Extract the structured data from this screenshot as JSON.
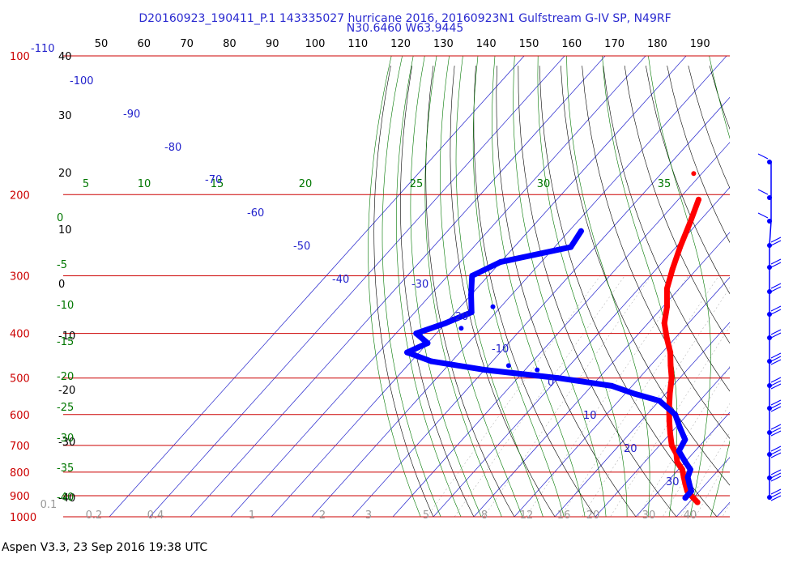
{
  "header": {
    "title": "D20160923_190411_P.1 143335027 hurricane 2016, 20160923N1 Gulfstream G-IV SP, N49RF",
    "subtitle": "N30.6460 W63.9445"
  },
  "footer": {
    "text": "Aspen V3.3, 23 Sep 2016  19:38 UTC"
  },
  "colors": {
    "temperature": "#ff0000",
    "dewpoint": "#0000ff",
    "isobar": "#cc0000",
    "isotherm": "#2222cc",
    "dry_adiabat": "#000000",
    "moist_adiabat": "#007700",
    "mixing_ratio": "#999999",
    "axis_text": "#000000",
    "right_axis_text": "#2222cc"
  },
  "chart_data": {
    "type": "scatter",
    "title": "",
    "xlabel": "",
    "ylabel": "",
    "pressure_levels": [
      "100",
      "200",
      "300",
      "400",
      "500",
      "600",
      "700",
      "800",
      "900",
      "1000"
    ],
    "top_tick_labels": [
      "50",
      "60",
      "70",
      "80",
      "90",
      "100",
      "110",
      "120",
      "130",
      "140",
      "150",
      "160",
      "170",
      "180",
      "190"
    ],
    "left_black_labels": [
      "40",
      "30",
      "20",
      "10",
      "0",
      "-10",
      "-20",
      "-30",
      "-40"
    ],
    "left_green_labels": [
      "0",
      "-5",
      "-10",
      "-15",
      "-20",
      "-25",
      "-30",
      "-35",
      "-40"
    ],
    "top_green_labels": [
      "5",
      "10",
      "15",
      "20",
      "25",
      "30",
      "35"
    ],
    "isotherm_labels": [
      "-110",
      "-100",
      "-90",
      "-80",
      "-70",
      "-60",
      "-50",
      "-40",
      "-30",
      "-20",
      "-10",
      "0",
      "10",
      "20",
      "30"
    ],
    "mixing_ratio_labels": [
      "0.1",
      "0.2",
      "0.4",
      "1",
      "2",
      "3",
      "5",
      "8",
      "12",
      "16",
      "20",
      "30",
      "40"
    ],
    "series": [
      {
        "key": "temperature",
        "points": [
          [
            205,
            -45
          ],
          [
            230,
            -42
          ],
          [
            260,
            -39
          ],
          [
            290,
            -36
          ],
          [
            320,
            -33
          ],
          [
            350,
            -29
          ],
          [
            380,
            -26
          ],
          [
            410,
            -22
          ],
          [
            440,
            -18
          ],
          [
            470,
            -15
          ],
          [
            500,
            -12
          ],
          [
            540,
            -9
          ],
          [
            580,
            -6
          ],
          [
            620,
            -3
          ],
          [
            660,
            0
          ],
          [
            700,
            3
          ],
          [
            730,
            6
          ],
          [
            760,
            8
          ],
          [
            790,
            11
          ],
          [
            820,
            13
          ],
          [
            850,
            15
          ],
          [
            880,
            17
          ],
          [
            910,
            20
          ],
          [
            930,
            22
          ]
        ]
      },
      {
        "key": "dewpoint",
        "points": [
          [
            240,
            -67
          ],
          [
            260,
            -66
          ],
          [
            280,
            -80
          ],
          [
            300,
            -84
          ],
          [
            330,
            -80
          ],
          [
            360,
            -76
          ],
          [
            380,
            -80
          ],
          [
            400,
            -85
          ],
          [
            420,
            -80
          ],
          [
            440,
            -83
          ],
          [
            460,
            -75
          ],
          [
            480,
            -60
          ],
          [
            500,
            -40
          ],
          [
            520,
            -25
          ],
          [
            540,
            -18
          ],
          [
            560,
            -10
          ],
          [
            600,
            -3
          ],
          [
            640,
            1
          ],
          [
            680,
            5
          ],
          [
            720,
            6
          ],
          [
            760,
            10
          ],
          [
            790,
            13
          ],
          [
            820,
            14
          ],
          [
            850,
            16
          ],
          [
            880,
            18
          ],
          [
            910,
            18
          ]
        ]
      },
      {
        "key": "dewpoint_scatter",
        "points": [
          [
            350,
            -72
          ],
          [
            390,
            -75
          ],
          [
            470,
            -55
          ],
          [
            480,
            -47
          ]
        ]
      },
      {
        "key": "isolated_point",
        "points": [
          [
            180,
            -52
          ]
        ]
      }
    ]
  }
}
